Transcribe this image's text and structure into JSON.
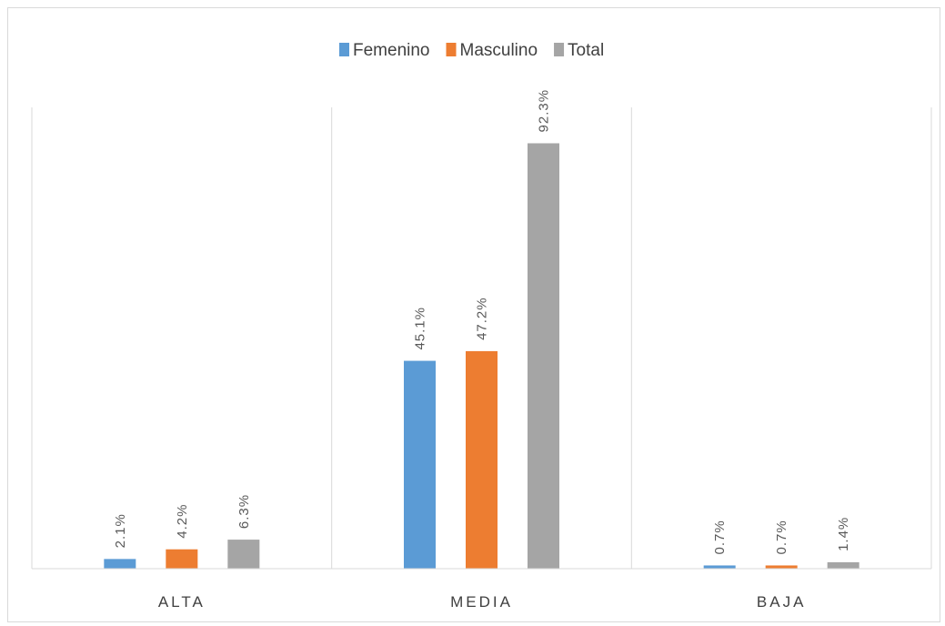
{
  "chart_data": {
    "type": "bar",
    "categories": [
      "ALTA",
      "MEDIA",
      "BAJA"
    ],
    "series": [
      {
        "name": "Femenino",
        "color": "#5b9bd5",
        "values": [
          2.1,
          45.1,
          0.7
        ],
        "labels": [
          "2.1%",
          "45.1%",
          "0.7%"
        ]
      },
      {
        "name": "Masculino",
        "color": "#ed7d31",
        "values": [
          4.2,
          47.2,
          0.7
        ],
        "labels": [
          "4.2%",
          "47.2%",
          "0.7%"
        ]
      },
      {
        "name": "Total",
        "color": "#a5a5a5",
        "values": [
          6.3,
          92.3,
          1.4
        ],
        "labels": [
          "6.3%",
          "92.3%",
          "1.4%"
        ]
      }
    ],
    "title": "",
    "xlabel": "",
    "ylabel": "",
    "ylim": [
      0,
      100
    ],
    "legend_position": "top-center",
    "grid": "vertical category separators"
  }
}
